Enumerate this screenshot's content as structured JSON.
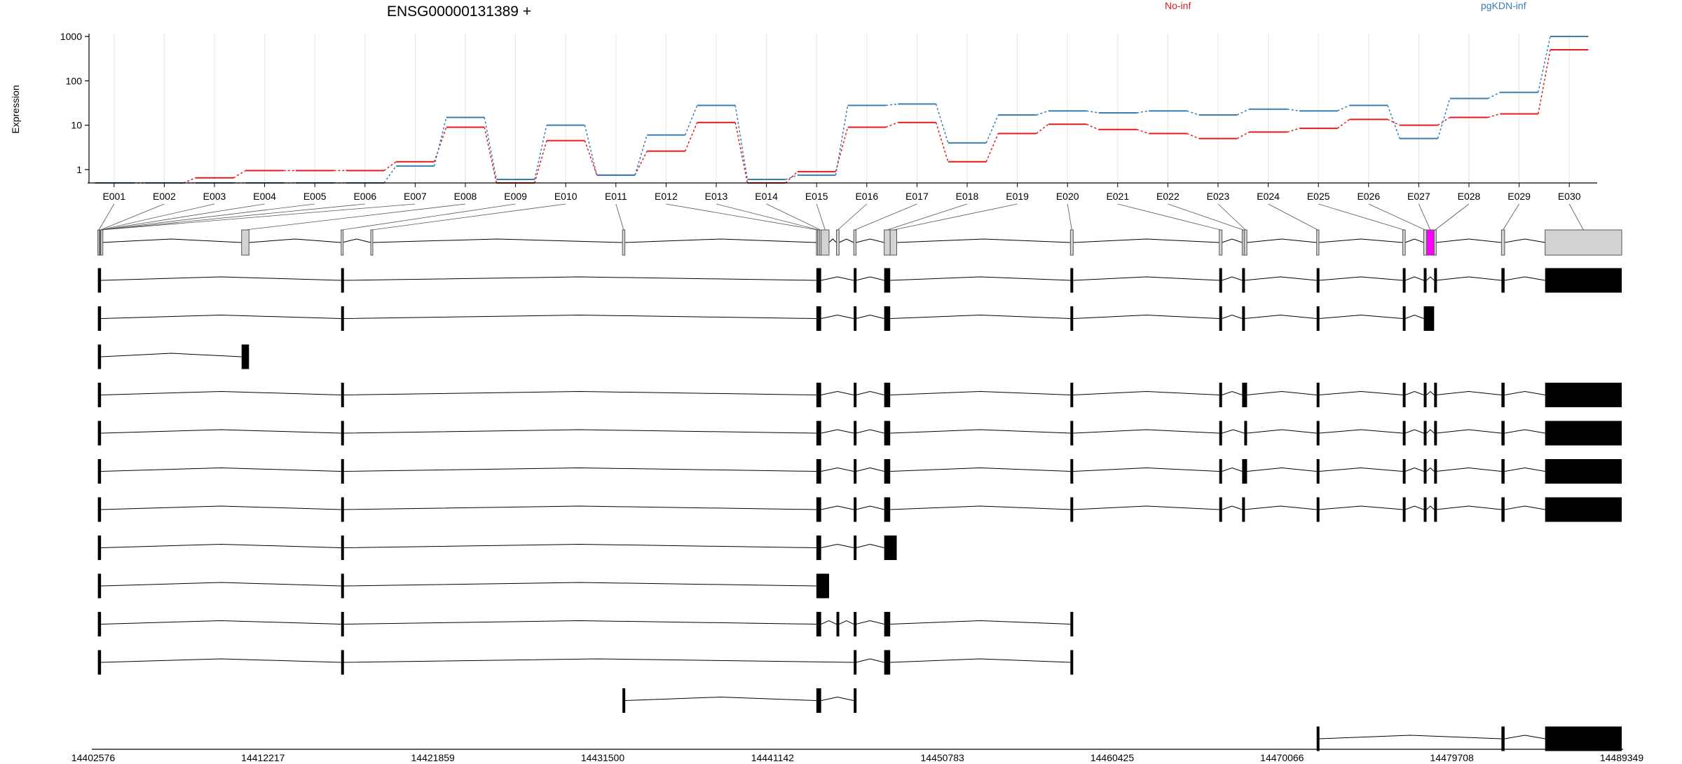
{
  "chart_data": {
    "type": "line",
    "title": "ENSG00000131389 +",
    "ylabel": "Expression",
    "yscale": "log",
    "ylim": [
      0.5,
      1000
    ],
    "ytick_labels": [
      "1",
      "10",
      "100",
      "1000"
    ],
    "ytick_values": [
      1,
      10,
      100,
      1000
    ],
    "grid": "vertical only, light, one line per exon bin",
    "legend_placement": "top, inline text labels",
    "categories": [
      "E001",
      "E002",
      "E003",
      "E004",
      "E005",
      "E006",
      "E007",
      "E008",
      "E009",
      "E010",
      "E011",
      "E012",
      "E013",
      "E014",
      "E015",
      "E016",
      "E017",
      "E018",
      "E019",
      "E020",
      "E021",
      "E022",
      "E023",
      "E024",
      "E025",
      "E026",
      "E027",
      "E028",
      "E029",
      "E030"
    ],
    "series": [
      {
        "name": "No-inf",
        "color": "#e41a1c",
        "values": [
          0.5,
          0.5,
          0.65,
          0.95,
          0.95,
          0.95,
          1.5,
          9,
          0.5,
          4.5,
          0.75,
          2.6,
          11.5,
          0.5,
          0.9,
          9,
          11.5,
          1.5,
          6.5,
          10.5,
          8,
          6.5,
          5,
          7,
          8.5,
          13.5,
          10,
          15,
          18,
          500
        ]
      },
      {
        "name": "pgKDN-inf",
        "color": "#377eb8",
        "values": [
          0.5,
          0.5,
          0.5,
          0.5,
          0.5,
          0.5,
          1.2,
          15,
          0.6,
          10,
          0.75,
          6,
          28,
          0.6,
          0.75,
          28,
          30,
          4,
          17,
          21,
          19,
          21,
          17,
          23,
          21,
          28,
          5,
          40,
          55,
          1000
        ]
      }
    ],
    "highlighted_exon": "E027",
    "genomic_axis": {
      "start": 14402576,
      "end": 14489349,
      "tick_labels": [
        "14402576",
        "14412217",
        "14421859",
        "14431500",
        "14441142",
        "14450783",
        "14460425",
        "14470066",
        "14479708",
        "14489349"
      ]
    },
    "colors": {
      "exon_fill_model": "#d3d3d3",
      "exon_fill_highlight": "#ff00ff",
      "exon_fill_transcript": "#000000",
      "intron_line": "#000000",
      "grid": "#e6e6e6"
    },
    "gene_model": {
      "exons": [
        {
          "id": "E001",
          "start": 14402840,
          "end": 14402930
        },
        {
          "id": "E002",
          "start": 14402930,
          "end": 14402945
        },
        {
          "id": "E003",
          "start": 14402945,
          "end": 14402960
        },
        {
          "id": "E004",
          "start": 14402960,
          "end": 14402975
        },
        {
          "id": "E005",
          "start": 14402975,
          "end": 14402990
        },
        {
          "id": "E006",
          "start": 14402990,
          "end": 14403005
        },
        {
          "id": "E007",
          "start": 14403005,
          "end": 14403020
        },
        {
          "id": "E008",
          "start": 14411000,
          "end": 14411420
        },
        {
          "id": "E009",
          "start": 14416650,
          "end": 14416710
        },
        {
          "id": "E010",
          "start": 14418330,
          "end": 14418390
        },
        {
          "id": "E011",
          "start": 14432620,
          "end": 14432760
        },
        {
          "id": "E012",
          "start": 14443630,
          "end": 14443700
        },
        {
          "id": "E013",
          "start": 14443700,
          "end": 14443800
        },
        {
          "id": "E014",
          "start": 14443800,
          "end": 14443900
        },
        {
          "id": "E015",
          "start": 14443900,
          "end": 14444350
        },
        {
          "id": "E016",
          "start": 14444770,
          "end": 14444920
        },
        {
          "id": "E017",
          "start": 14445750,
          "end": 14445880
        },
        {
          "id": "E018",
          "start": 14447480,
          "end": 14447820
        },
        {
          "id": "E019",
          "start": 14447820,
          "end": 14448190
        },
        {
          "id": "E020",
          "start": 14458050,
          "end": 14458210
        },
        {
          "id": "E021",
          "start": 14466500,
          "end": 14466660
        },
        {
          "id": "E022",
          "start": 14467800,
          "end": 14467920
        },
        {
          "id": "E023",
          "start": 14467920,
          "end": 14468070
        },
        {
          "id": "E024",
          "start": 14472030,
          "end": 14472160
        },
        {
          "id": "E025",
          "start": 14476920,
          "end": 14477060
        },
        {
          "id": "E026",
          "start": 14478110,
          "end": 14478270
        },
        {
          "id": "E027",
          "start": 14478270,
          "end": 14478700
        },
        {
          "id": "E028",
          "start": 14478700,
          "end": 14478800
        },
        {
          "id": "E029",
          "start": 14482520,
          "end": 14482700
        },
        {
          "id": "E030",
          "start": 14485000,
          "end": 14489349
        }
      ],
      "transcripts": [
        {
          "exons": [
            [
              14402840,
              14403020
            ],
            [
              14416650,
              14416710
            ],
            [
              14443630,
              14443900
            ],
            [
              14445750,
              14445880
            ],
            [
              14447480,
              14447820
            ],
            [
              14458050,
              14458210
            ],
            [
              14466500,
              14466660
            ],
            [
              14467800,
              14467920
            ],
            [
              14472030,
              14472160
            ],
            [
              14476920,
              14477060
            ],
            [
              14478110,
              14478270
            ],
            [
              14478700,
              14478800
            ],
            [
              14482520,
              14482700
            ],
            [
              14485000,
              14489349
            ]
          ]
        },
        {
          "exons": [
            [
              14402840,
              14403020
            ],
            [
              14416650,
              14416710
            ],
            [
              14443630,
              14443900
            ],
            [
              14445750,
              14445880
            ],
            [
              14447480,
              14447820
            ],
            [
              14458050,
              14458210
            ],
            [
              14466500,
              14466660
            ],
            [
              14467800,
              14467920
            ],
            [
              14472030,
              14472160
            ],
            [
              14476920,
              14477060
            ],
            [
              14478110,
              14478700
            ]
          ]
        },
        {
          "exons": [
            [
              14402840,
              14403020
            ],
            [
              14411000,
              14411420
            ]
          ]
        },
        {
          "exons": [
            [
              14402840,
              14403020
            ],
            [
              14416650,
              14416710
            ],
            [
              14443630,
              14443900
            ],
            [
              14445750,
              14445880
            ],
            [
              14447480,
              14447820
            ],
            [
              14458050,
              14458210
            ],
            [
              14466500,
              14466660
            ],
            [
              14467800,
              14467920
            ],
            [
              14467920,
              14468070
            ],
            [
              14472030,
              14472160
            ],
            [
              14476920,
              14477060
            ],
            [
              14478110,
              14478270
            ],
            [
              14478700,
              14478800
            ],
            [
              14482520,
              14482700
            ],
            [
              14485000,
              14489349
            ]
          ]
        },
        {
          "exons": [
            [
              14402840,
              14403020
            ],
            [
              14416650,
              14416710
            ],
            [
              14443630,
              14443900
            ],
            [
              14445750,
              14445880
            ],
            [
              14447480,
              14447820
            ],
            [
              14458050,
              14458210
            ],
            [
              14466500,
              14466660
            ],
            [
              14467920,
              14468070
            ],
            [
              14472030,
              14472160
            ],
            [
              14476920,
              14477060
            ],
            [
              14478110,
              14478270
            ],
            [
              14478700,
              14478800
            ],
            [
              14482520,
              14482700
            ],
            [
              14485000,
              14489349
            ]
          ]
        },
        {
          "exons": [
            [
              14402840,
              14403020
            ],
            [
              14416650,
              14416710
            ],
            [
              14443630,
              14443900
            ],
            [
              14445750,
              14445880
            ],
            [
              14447480,
              14447820
            ],
            [
              14458050,
              14458210
            ],
            [
              14466500,
              14466660
            ],
            [
              14467800,
              14467920
            ],
            [
              14467920,
              14468070
            ],
            [
              14472030,
              14472160
            ],
            [
              14476920,
              14477060
            ],
            [
              14478110,
              14478270
            ],
            [
              14478700,
              14478800
            ],
            [
              14482520,
              14482700
            ],
            [
              14485000,
              14489349
            ]
          ]
        },
        {
          "exons": [
            [
              14402840,
              14403020
            ],
            [
              14416650,
              14416710
            ],
            [
              14443630,
              14443900
            ],
            [
              14445750,
              14445880
            ],
            [
              14447480,
              14447820
            ],
            [
              14458050,
              14458210
            ],
            [
              14466500,
              14466660
            ],
            [
              14467800,
              14467920
            ],
            [
              14472030,
              14472160
            ],
            [
              14476920,
              14477060
            ],
            [
              14478110,
              14478270
            ],
            [
              14478700,
              14478800
            ],
            [
              14482520,
              14482700
            ],
            [
              14485000,
              14489349
            ]
          ]
        },
        {
          "exons": [
            [
              14402840,
              14403020
            ],
            [
              14416650,
              14416710
            ],
            [
              14443630,
              14443900
            ],
            [
              14445750,
              14445880
            ],
            [
              14447480,
              14448190
            ]
          ]
        },
        {
          "exons": [
            [
              14402840,
              14403020
            ],
            [
              14416650,
              14416710
            ],
            [
              14443630,
              14444350
            ]
          ]
        },
        {
          "exons": [
            [
              14402840,
              14403020
            ],
            [
              14416650,
              14416710
            ],
            [
              14443630,
              14443900
            ],
            [
              14444770,
              14444920
            ],
            [
              14445750,
              14445880
            ],
            [
              14447480,
              14447820
            ],
            [
              14458050,
              14458210
            ]
          ]
        },
        {
          "exons": [
            [
              14402840,
              14403020
            ],
            [
              14416650,
              14416710
            ],
            [
              14445750,
              14445880
            ],
            [
              14447480,
              14447820
            ],
            [
              14458050,
              14458210
            ]
          ]
        },
        {
          "exons": [
            [
              14432620,
              14432760
            ],
            [
              14443630,
              14443900
            ],
            [
              14445750,
              14445880
            ]
          ]
        },
        {
          "exons": [
            [
              14472030,
              14472160
            ],
            [
              14482520,
              14482700
            ],
            [
              14485000,
              14489349
            ]
          ]
        }
      ]
    }
  }
}
